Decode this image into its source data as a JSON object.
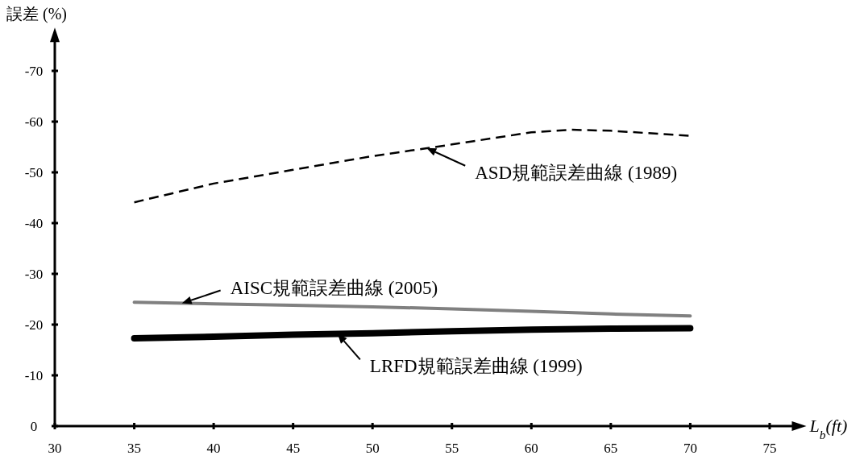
{
  "chart_data": {
    "type": "line",
    "xlabel": "L$_{b}$(ft)",
    "ylabel": "誤差 (%)",
    "xlim": [
      30,
      76.5
    ],
    "ylim": [
      0,
      -76
    ],
    "xticks": [
      30,
      35,
      40,
      45,
      50,
      55,
      60,
      65,
      70,
      75
    ],
    "yticks": [
      0,
      -10,
      -20,
      -30,
      -40,
      -50,
      -60,
      -70
    ],
    "grid": false,
    "series": [
      {
        "color": "#000000",
        "line_style": "dashed",
        "x": [
          35,
          40,
          45,
          50,
          55,
          60,
          62.5,
          65,
          70
        ],
        "values": [
          -44.1,
          -47.8,
          -50.5,
          -53.2,
          -55.5,
          -57.9,
          -58.4,
          -58.2,
          -57.2
        ]
      },
      {
        "color": "#808080",
        "line_style": "solid",
        "x": [
          35,
          40,
          45,
          50,
          55,
          60,
          65,
          70
        ],
        "values": [
          -24.4,
          -24.1,
          -23.8,
          -23.5,
          -23.1,
          -22.6,
          -22.1,
          -21.7
        ]
      },
      {
        "color": "#000000",
        "line_style": "solid",
        "x": [
          35,
          40,
          45,
          50,
          55,
          60,
          65,
          70
        ],
        "values": [
          -17.3,
          -17.6,
          -18,
          -18.3,
          -18.7,
          -19,
          -19.2,
          -19.3
        ]
      }
    ],
    "annotations": [
      {
        "text": "ASD規範誤差曲線 (1989)",
        "x": 53.4,
        "y": -54.8
      },
      {
        "text": "AISC規範誤差曲線 (2005)",
        "x": 38,
        "y": -24.2
      },
      {
        "text": "LRFD規範誤差曲線 (1999)",
        "x": 47.8,
        "y": -18.2
      }
    ]
  }
}
